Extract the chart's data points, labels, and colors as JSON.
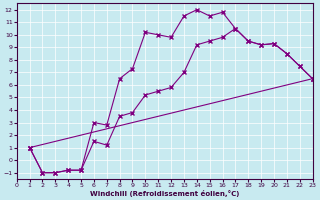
{
  "xlabel": "Windchill (Refroidissement éolien,°C)",
  "bg_color": "#c8eaf0",
  "line_color": "#800080",
  "xlim": [
    0,
    23
  ],
  "ylim": [
    -1.5,
    12.5
  ],
  "xticks": [
    0,
    1,
    2,
    3,
    4,
    5,
    6,
    7,
    8,
    9,
    10,
    11,
    12,
    13,
    14,
    15,
    16,
    17,
    18,
    19,
    20,
    21,
    22,
    23
  ],
  "yticks": [
    -1,
    0,
    1,
    2,
    3,
    4,
    5,
    6,
    7,
    8,
    9,
    10,
    11,
    12
  ],
  "series1_x": [
    1,
    2,
    3,
    4,
    5,
    6,
    7,
    8,
    9,
    10,
    11,
    12,
    13,
    14,
    15,
    16,
    17,
    18,
    19,
    20,
    21,
    22,
    23
  ],
  "series1_y": [
    1,
    -1,
    -1,
    -0.8,
    -0.8,
    3.0,
    2.8,
    6.5,
    7.3,
    10.2,
    10.0,
    9.8,
    11.5,
    12.0,
    11.5,
    11.8,
    10.5,
    9.5,
    9.2,
    9.3,
    8.5,
    7.5,
    6.5
  ],
  "series2_x": [
    1,
    2,
    3,
    4,
    5,
    6,
    7,
    8,
    9,
    10,
    11,
    12,
    13,
    14,
    15,
    16,
    17,
    18,
    19,
    20,
    21,
    22,
    23
  ],
  "series2_y": [
    1,
    -1,
    -1,
    -0.8,
    -0.8,
    1.5,
    1.2,
    3.5,
    3.8,
    5.2,
    5.5,
    5.8,
    7.0,
    9.2,
    9.5,
    9.8,
    10.5,
    9.5,
    9.2,
    9.3,
    8.5,
    7.5,
    6.5
  ],
  "series3_x": [
    1,
    23
  ],
  "series3_y": [
    1,
    6.5
  ]
}
